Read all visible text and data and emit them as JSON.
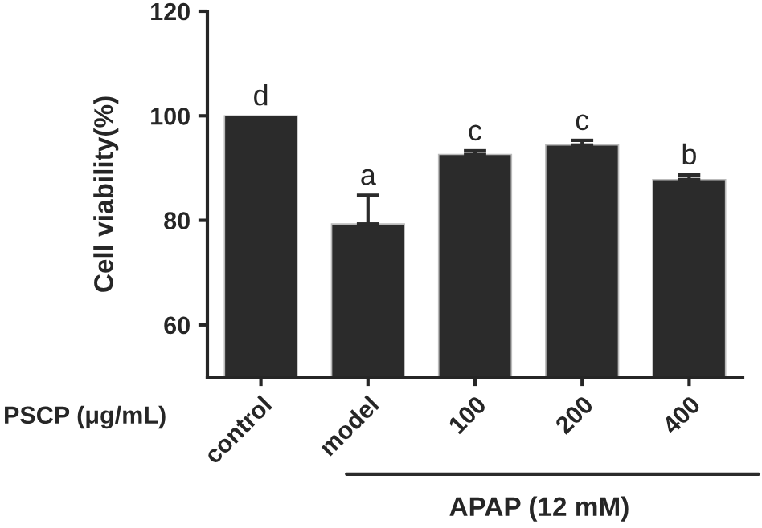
{
  "chart_data": {
    "type": "bar",
    "ylabel": "Cell viability(%)",
    "categories": [
      "control",
      "model",
      "100",
      "200",
      "400"
    ],
    "values": [
      100,
      79.3,
      92.6,
      94.4,
      87.8
    ],
    "errors": [
      null,
      5.5,
      0.7,
      0.9,
      0.9
    ],
    "color": "#2b2b2b",
    "ylim": [
      50,
      120
    ],
    "yticks": [
      60,
      80,
      100,
      120
    ],
    "grid": false,
    "annotations": [
      {
        "text": "d",
        "x": "control",
        "y": 100
      },
      {
        "text": "a",
        "x": "model",
        "y": 84.8
      },
      {
        "text": "c",
        "x": "100",
        "y": 93.3
      },
      {
        "text": "c",
        "x": "200",
        "y": 95.3
      },
      {
        "text": "b",
        "x": "400",
        "y": 88.7
      },
      "PSCP (μg/mL)",
      "APAP (12 mM)"
    ]
  }
}
